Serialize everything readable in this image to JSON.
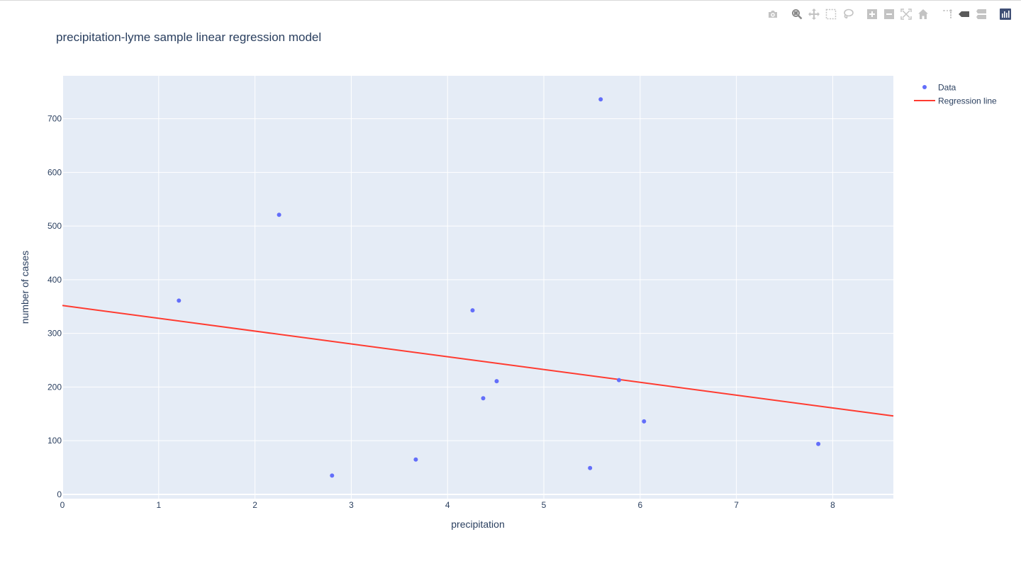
{
  "modebar": {
    "buttons": [
      {
        "name": "camera-icon",
        "title": "Download plot as a png",
        "group": 1
      },
      {
        "name": "zoom-icon",
        "title": "Zoom",
        "group": 2,
        "active": true
      },
      {
        "name": "pan-icon",
        "title": "Pan",
        "group": 2
      },
      {
        "name": "box-select-icon",
        "title": "Box Select",
        "group": 2
      },
      {
        "name": "lasso-select-icon",
        "title": "Lasso Select",
        "group": 2
      },
      {
        "name": "zoom-in-icon",
        "title": "Zoom in",
        "group": 3
      },
      {
        "name": "zoom-out-icon",
        "title": "Zoom out",
        "group": 3
      },
      {
        "name": "autoscale-icon",
        "title": "Autoscale",
        "group": 3
      },
      {
        "name": "reset-axes-icon",
        "title": "Reset axes",
        "group": 3
      },
      {
        "name": "spikelines-icon",
        "title": "Toggle Spike Lines",
        "group": 4
      },
      {
        "name": "hover-closest-icon",
        "title": "Show closest data on hover",
        "group": 4
      },
      {
        "name": "hover-compare-icon",
        "title": "Compare data on hover",
        "group": 4
      },
      {
        "name": "plotly-logo-icon",
        "title": "Produced with Plotly",
        "group": 5
      }
    ]
  },
  "chart_data": {
    "type": "scatter",
    "title": "precipitation-lyme sample linear regression model",
    "xlabel": "precipitation",
    "ylabel": "number of cases",
    "xlim": [
      0,
      8.63
    ],
    "ylim": [
      -8,
      780
    ],
    "xticks": [
      0,
      1,
      2,
      3,
      4,
      5,
      6,
      7,
      8
    ],
    "yticks": [
      0,
      100,
      200,
      300,
      400,
      500,
      600,
      700
    ],
    "grid": true,
    "plot_bgcolor": "#E5ECF6",
    "legend_position": "top-right",
    "series": [
      {
        "name": "Data",
        "mode": "markers",
        "color": "#636EFA",
        "points": [
          {
            "x": 1.21,
            "y": 361
          },
          {
            "x": 2.25,
            "y": 521
          },
          {
            "x": 2.8,
            "y": 35
          },
          {
            "x": 3.67,
            "y": 65
          },
          {
            "x": 4.26,
            "y": 343
          },
          {
            "x": 4.37,
            "y": 179
          },
          {
            "x": 4.51,
            "y": 211
          },
          {
            "x": 5.48,
            "y": 49
          },
          {
            "x": 5.59,
            "y": 736
          },
          {
            "x": 5.78,
            "y": 213
          },
          {
            "x": 6.04,
            "y": 136
          },
          {
            "x": 7.85,
            "y": 94
          }
        ]
      },
      {
        "name": "Regression line",
        "mode": "lines",
        "color": "#FF3B30",
        "points": [
          {
            "x": 0,
            "y": 352
          },
          {
            "x": 8.63,
            "y": 146
          }
        ]
      }
    ]
  }
}
